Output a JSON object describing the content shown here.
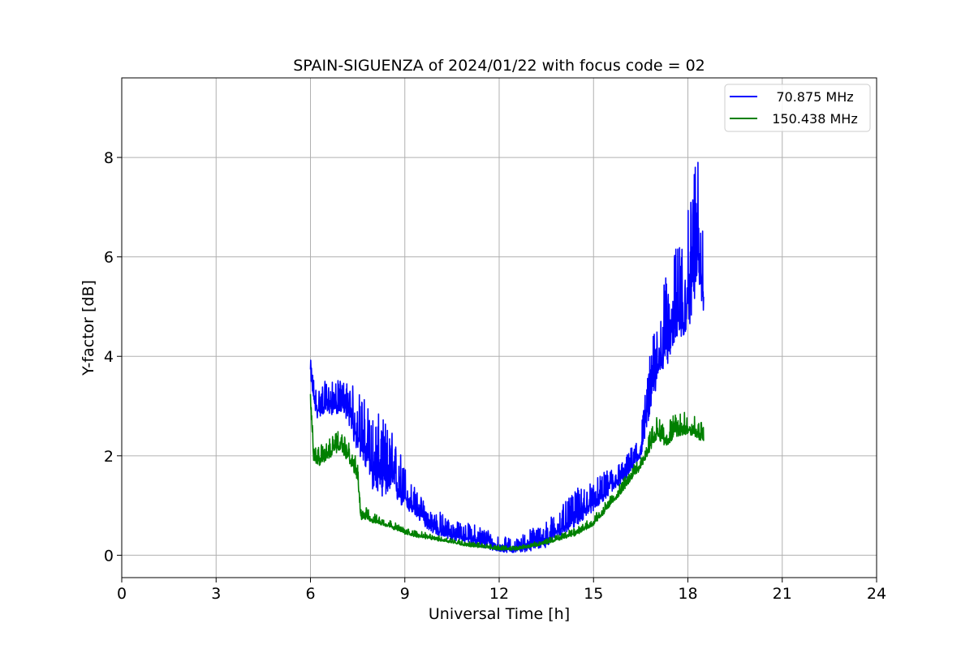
{
  "chart_data": {
    "type": "line",
    "title": "SPAIN-SIGUENZA of 2024/01/22 with focus code = 02",
    "xlabel": "Universal Time [h]",
    "ylabel": "Y-factor [dB]",
    "xlim": [
      0,
      24
    ],
    "ylim": [
      -0.45,
      9.6
    ],
    "xticks": [
      0,
      3,
      6,
      9,
      12,
      15,
      18,
      21,
      24
    ],
    "yticks": [
      0,
      2,
      4,
      6,
      8
    ],
    "grid": true,
    "legend_position": "top-right",
    "series": [
      {
        "name": "70.875 MHz",
        "color": "#0000ff",
        "x": [
          6.0,
          6.1,
          6.2,
          6.4,
          6.6,
          6.8,
          7.0,
          7.2,
          7.4,
          7.6,
          7.8,
          8.0,
          8.3,
          8.6,
          8.9,
          9.2,
          9.5,
          9.8,
          10.1,
          10.5,
          11.0,
          11.5,
          12.0,
          12.5,
          13.0,
          13.5,
          14.0,
          14.5,
          15.0,
          15.5,
          16.0,
          16.5,
          16.8,
          17.0,
          17.2,
          17.4,
          17.6,
          17.8,
          18.0,
          18.2,
          18.3,
          18.5
        ],
        "y": [
          3.7,
          3.2,
          2.9,
          3.0,
          3.0,
          3.0,
          3.05,
          2.9,
          2.5,
          2.3,
          2.0,
          1.7,
          1.6,
          1.5,
          1.25,
          1.0,
          0.8,
          0.6,
          0.5,
          0.4,
          0.35,
          0.25,
          0.15,
          0.12,
          0.2,
          0.3,
          0.55,
          0.8,
          1.05,
          1.35,
          1.6,
          2.1,
          3.2,
          3.7,
          4.1,
          4.4,
          4.7,
          4.9,
          5.1,
          5.8,
          6.5,
          5.2
        ],
        "noise_amplitude": [
          0.25,
          0.4,
          0.45,
          0.5,
          0.5,
          0.5,
          0.5,
          0.6,
          0.9,
          1.0,
          1.1,
          1.2,
          1.2,
          1.0,
          0.8,
          0.5,
          0.4,
          0.35,
          0.4,
          0.3,
          0.3,
          0.35,
          0.25,
          0.2,
          0.35,
          0.4,
          0.45,
          0.55,
          0.45,
          0.4,
          0.35,
          0.45,
          0.9,
          1.1,
          1.3,
          1.4,
          1.5,
          1.6,
          1.8,
          2.2,
          2.3,
          1.2
        ]
      },
      {
        "name": "150.438 MHz",
        "color": "#008000",
        "x": [
          6.0,
          6.05,
          6.1,
          6.3,
          6.6,
          6.9,
          7.2,
          7.5,
          7.6,
          7.7,
          8.0,
          8.5,
          9.0,
          9.5,
          10.0,
          10.5,
          11.0,
          11.5,
          12.0,
          12.5,
          13.0,
          13.5,
          14.0,
          14.5,
          15.0,
          15.5,
          16.0,
          16.5,
          16.8,
          17.0,
          17.3,
          17.6,
          17.9,
          18.2,
          18.5
        ],
        "y": [
          3.1,
          2.6,
          1.95,
          1.9,
          2.05,
          2.2,
          2.0,
          1.6,
          0.75,
          0.8,
          0.7,
          0.6,
          0.45,
          0.38,
          0.32,
          0.27,
          0.2,
          0.17,
          0.13,
          0.12,
          0.18,
          0.25,
          0.35,
          0.45,
          0.65,
          1.0,
          1.4,
          1.8,
          2.2,
          2.45,
          2.3,
          2.5,
          2.55,
          2.5,
          2.35
        ],
        "noise_amplitude": [
          0.15,
          0.2,
          0.25,
          0.3,
          0.3,
          0.3,
          0.3,
          0.3,
          0.2,
          0.2,
          0.15,
          0.12,
          0.1,
          0.1,
          0.08,
          0.08,
          0.08,
          0.07,
          0.07,
          0.06,
          0.07,
          0.08,
          0.1,
          0.12,
          0.14,
          0.16,
          0.18,
          0.2,
          0.3,
          0.35,
          0.35,
          0.35,
          0.35,
          0.3,
          0.3
        ]
      }
    ]
  }
}
